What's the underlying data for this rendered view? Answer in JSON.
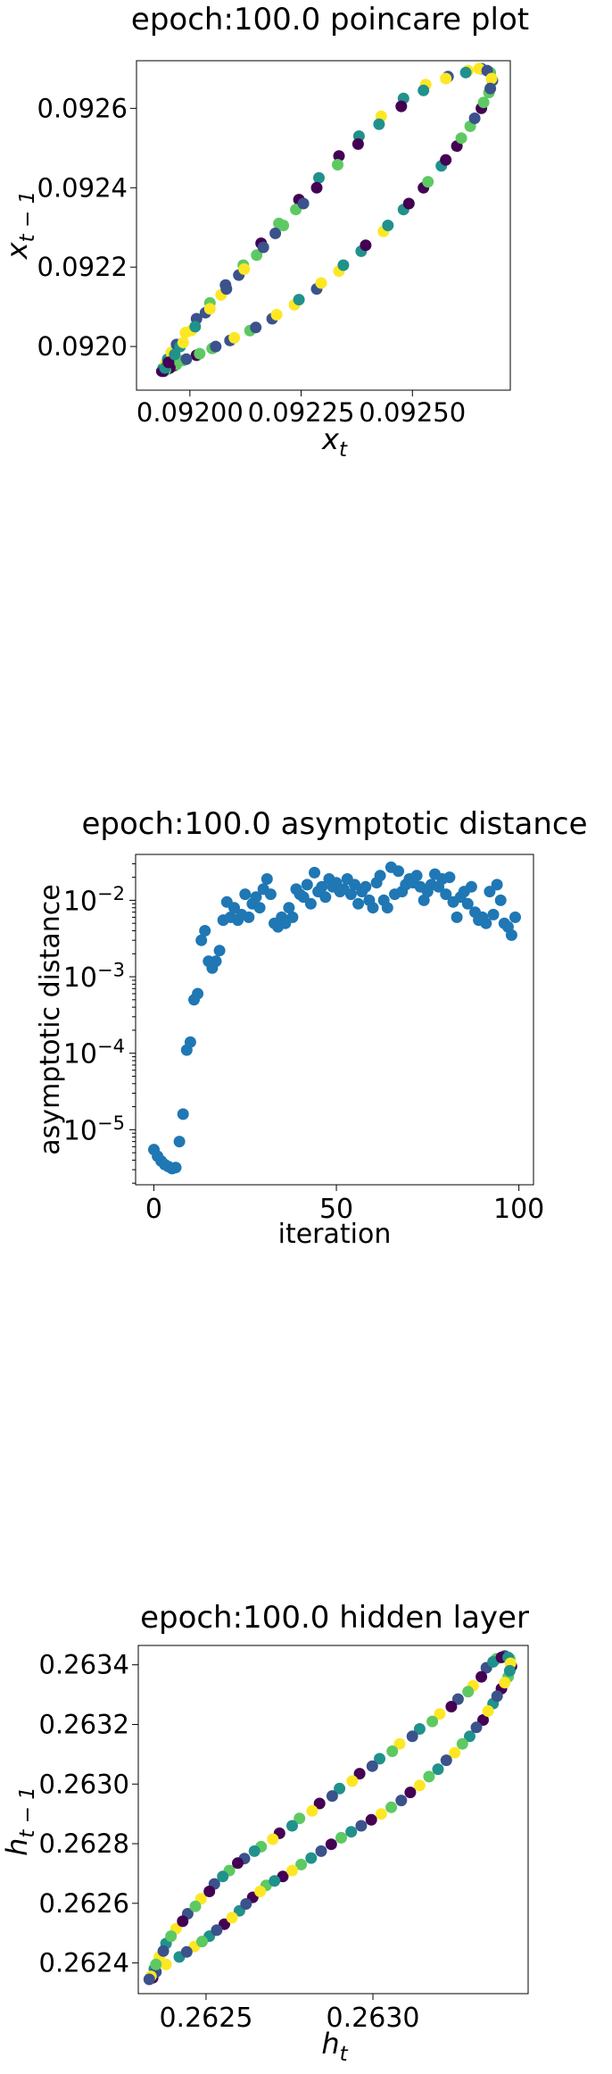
{
  "chart_data": [
    {
      "type": "scatter",
      "title": "epoch:100.0 poincare plot",
      "xlabel": "x",
      "xlabel_sub": "t",
      "ylabel": "x",
      "ylabel_sub": "t − 1",
      "xlim": [
        0.09188,
        0.09272
      ],
      "ylim": [
        0.09189,
        0.09272
      ],
      "xticks": [
        0.092,
        0.09225,
        0.0925
      ],
      "xtick_labels": [
        "0.09200",
        "0.09225",
        "0.09250"
      ],
      "yticks": [
        0.092,
        0.0922,
        0.0924,
        0.0926
      ],
      "ytick_labels": [
        "0.0920",
        "0.0922",
        "0.0924",
        "0.0926"
      ],
      "colormap": [
        "#440154",
        "#3b528b",
        "#21918c",
        "#5ec962",
        "#fde725"
      ],
      "grid": false,
      "points": [
        [
          0.091937,
          0.091938
        ],
        [
          0.09194,
          0.091945
        ],
        [
          0.091945,
          0.091955
        ],
        [
          0.09195,
          0.091968
        ],
        [
          0.091958,
          0.091985
        ],
        [
          0.09197,
          0.092005
        ],
        [
          0.09199,
          0.092035
        ],
        [
          0.092015,
          0.09207
        ],
        [
          0.092045,
          0.09211
        ],
        [
          0.09208,
          0.092155
        ],
        [
          0.09212,
          0.092205
        ],
        [
          0.09216,
          0.09226
        ],
        [
          0.0922,
          0.09231
        ],
        [
          0.092245,
          0.09237
        ],
        [
          0.09229,
          0.092425
        ],
        [
          0.092335,
          0.09248
        ],
        [
          0.09238,
          0.09253
        ],
        [
          0.09243,
          0.09258
        ],
        [
          0.09248,
          0.092625
        ],
        [
          0.09253,
          0.09266
        ],
        [
          0.09258,
          0.09268
        ],
        [
          0.092625,
          0.092695
        ],
        [
          0.092655,
          0.0927
        ],
        [
          0.092675,
          0.09269
        ],
        [
          0.09268,
          0.09267
        ],
        [
          0.092672,
          0.09264
        ],
        [
          0.092655,
          0.0926
        ],
        [
          0.09263,
          0.092555
        ],
        [
          0.0926,
          0.092505
        ],
        [
          0.092565,
          0.092455
        ],
        [
          0.092525,
          0.0924
        ],
        [
          0.09248,
          0.092345
        ],
        [
          0.092435,
          0.09229
        ],
        [
          0.092385,
          0.09224
        ],
        [
          0.092335,
          0.09219
        ],
        [
          0.092285,
          0.092145
        ],
        [
          0.092235,
          0.092105
        ],
        [
          0.092185,
          0.09207
        ],
        [
          0.092135,
          0.09204
        ],
        [
          0.09209,
          0.092015
        ],
        [
          0.09205,
          0.091995
        ],
        [
          0.092015,
          0.091978
        ],
        [
          0.091985,
          0.091965
        ],
        [
          0.091965,
          0.091952
        ],
        [
          0.09195,
          0.091943
        ],
        [
          0.091942,
          0.091938
        ],
        [
          0.091948,
          0.09195
        ],
        [
          0.09196,
          0.091972
        ],
        [
          0.091978,
          0.092
        ],
        [
          0.092003,
          0.09204
        ],
        [
          0.092035,
          0.092085
        ],
        [
          0.09207,
          0.09213
        ],
        [
          0.09211,
          0.09218
        ],
        [
          0.09215,
          0.09223
        ],
        [
          0.092192,
          0.092285
        ],
        [
          0.092238,
          0.092345
        ],
        [
          0.092285,
          0.0924
        ],
        [
          0.092332,
          0.092458
        ],
        [
          0.092378,
          0.09251
        ],
        [
          0.092425,
          0.09256
        ],
        [
          0.092475,
          0.092605
        ],
        [
          0.092525,
          0.092645
        ],
        [
          0.092575,
          0.092675
        ],
        [
          0.09262,
          0.09269
        ],
        [
          0.09265,
          0.0927
        ],
        [
          0.092668,
          0.092695
        ],
        [
          0.092678,
          0.092675
        ],
        [
          0.092675,
          0.09265
        ],
        [
          0.09266,
          0.092615
        ],
        [
          0.09264,
          0.092575
        ],
        [
          0.09261,
          0.092525
        ],
        [
          0.092575,
          0.09247
        ],
        [
          0.092535,
          0.092415
        ],
        [
          0.092492,
          0.09236
        ],
        [
          0.092445,
          0.092305
        ],
        [
          0.092395,
          0.092255
        ],
        [
          0.092345,
          0.092205
        ],
        [
          0.092295,
          0.09216
        ],
        [
          0.092245,
          0.092118
        ],
        [
          0.092195,
          0.09208
        ],
        [
          0.092148,
          0.092048
        ],
        [
          0.0921,
          0.092022
        ],
        [
          0.092058,
          0.092
        ],
        [
          0.092022,
          0.091982
        ],
        [
          0.091992,
          0.091968
        ],
        [
          0.09197,
          0.091955
        ],
        [
          0.091955,
          0.091946
        ],
        [
          0.091945,
          0.09194
        ],
        [
          0.09194,
          0.091938
        ],
        [
          0.091944,
          0.091946
        ],
        [
          0.091952,
          0.09196
        ],
        [
          0.091966,
          0.09198
        ],
        [
          0.091985,
          0.09201
        ],
        [
          0.092012,
          0.09205
        ],
        [
          0.092045,
          0.092095
        ],
        [
          0.092082,
          0.092145
        ],
        [
          0.092122,
          0.092195
        ],
        [
          0.092165,
          0.09225
        ],
        [
          0.09221,
          0.092305
        ],
        [
          0.092255,
          0.09236
        ]
      ]
    },
    {
      "type": "scatter",
      "title": "epoch:100.0 asymptotic distance",
      "xlabel": "iteration",
      "ylabel": "asymptotic distance",
      "xlim": [
        -5,
        104
      ],
      "ylim_log10": [
        -5.72,
        -1.4
      ],
      "yscale": "log",
      "xticks": [
        0,
        50,
        100
      ],
      "xtick_labels": [
        "0",
        "50",
        "100"
      ],
      "ytick_exponents": [
        -5,
        -4,
        -3,
        -2
      ],
      "ytick_base": "10",
      "ytick_exp_labels": [
        "−5",
        "−4",
        "−3",
        "−2"
      ],
      "color": "#1f77b4",
      "grid": false,
      "x": [
        0,
        1,
        2,
        3,
        4,
        5,
        6,
        7,
        8,
        9,
        10,
        11,
        12,
        13,
        14,
        15,
        16,
        17,
        18,
        19,
        20,
        21,
        22,
        23,
        24,
        25,
        26,
        27,
        28,
        29,
        30,
        31,
        32,
        33,
        34,
        35,
        36,
        37,
        38,
        39,
        40,
        41,
        42,
        43,
        44,
        45,
        46,
        47,
        48,
        49,
        50,
        51,
        52,
        53,
        54,
        55,
        56,
        57,
        58,
        59,
        60,
        61,
        62,
        63,
        64,
        65,
        66,
        67,
        68,
        69,
        70,
        71,
        72,
        73,
        74,
        75,
        76,
        77,
        78,
        79,
        80,
        81,
        82,
        83,
        84,
        85,
        86,
        87,
        88,
        89,
        90,
        91,
        92,
        93,
        94,
        95,
        96,
        97,
        98,
        99
      ],
      "y": [
        5.5e-06,
        4.5e-06,
        3.9e-06,
        3.5e-06,
        3.3e-06,
        3.1e-06,
        3.2e-06,
        7e-06,
        1.6e-05,
        0.00011,
        0.00014,
        0.0005,
        0.0006,
        0.003,
        0.004,
        0.0016,
        0.0013,
        0.0016,
        0.0022,
        0.0055,
        0.0095,
        0.006,
        0.008,
        0.0055,
        0.0065,
        0.012,
        0.006,
        0.009,
        0.011,
        0.008,
        0.014,
        0.019,
        0.012,
        0.005,
        0.0045,
        0.006,
        0.005,
        0.008,
        0.006,
        0.014,
        0.012,
        0.011,
        0.016,
        0.009,
        0.023,
        0.013,
        0.015,
        0.011,
        0.019,
        0.015,
        0.017,
        0.013,
        0.014,
        0.019,
        0.012,
        0.016,
        0.009,
        0.013,
        0.015,
        0.01,
        0.008,
        0.017,
        0.021,
        0.01,
        0.008,
        0.027,
        0.012,
        0.024,
        0.013,
        0.016,
        0.019,
        0.017,
        0.021,
        0.015,
        0.01,
        0.013,
        0.016,
        0.022,
        0.015,
        0.019,
        0.012,
        0.02,
        0.0095,
        0.006,
        0.011,
        0.013,
        0.009,
        0.015,
        0.007,
        0.0055,
        0.006,
        0.005,
        0.013,
        0.0065,
        0.016,
        0.01,
        0.005,
        0.0045,
        0.0035,
        0.006
      ]
    },
    {
      "type": "scatter",
      "title": "epoch:100.0 hidden layer",
      "xlabel": "h",
      "xlabel_sub": "t",
      "ylabel": "h",
      "ylabel_sub": "t − 1",
      "xlim": [
        0.262297,
        0.263465
      ],
      "ylim": [
        0.262297,
        0.263465
      ],
      "xticks": [
        0.2625,
        0.263
      ],
      "xtick_labels": [
        "0.2625",
        "0.2630"
      ],
      "yticks": [
        0.2624,
        0.2626,
        0.2628,
        0.263,
        0.2632,
        0.2634
      ],
      "ytick_labels": [
        "0.2624",
        "0.2626",
        "0.2628",
        "0.2630",
        "0.2632",
        "0.2634"
      ],
      "colormap": [
        "#440154",
        "#3b528b",
        "#21918c",
        "#5ec962",
        "#fde725"
      ],
      "grid": false,
      "points": [
        [
          0.26234,
          0.26235
        ],
        [
          0.262345,
          0.26238
        ],
        [
          0.26236,
          0.26242
        ],
        [
          0.26238,
          0.262465
        ],
        [
          0.26241,
          0.262515
        ],
        [
          0.262445,
          0.262565
        ],
        [
          0.262485,
          0.262615
        ],
        [
          0.262525,
          0.262665
        ],
        [
          0.26257,
          0.26271
        ],
        [
          0.262615,
          0.26275
        ],
        [
          0.262665,
          0.26279
        ],
        [
          0.26272,
          0.262835
        ],
        [
          0.26278,
          0.262885
        ],
        [
          0.26284,
          0.262935
        ],
        [
          0.2629,
          0.262985
        ],
        [
          0.26296,
          0.263035
        ],
        [
          0.26302,
          0.263085
        ],
        [
          0.26308,
          0.263135
        ],
        [
          0.26314,
          0.263185
        ],
        [
          0.2632,
          0.263235
        ],
        [
          0.263255,
          0.263285
        ],
        [
          0.2633,
          0.26333
        ],
        [
          0.26334,
          0.26339
        ],
        [
          0.26337,
          0.26342
        ],
        [
          0.263395,
          0.26343
        ],
        [
          0.26341,
          0.26342
        ],
        [
          0.263415,
          0.263395
        ],
        [
          0.263405,
          0.26336
        ],
        [
          0.263385,
          0.26332
        ],
        [
          0.26336,
          0.26327
        ],
        [
          0.26333,
          0.263215
        ],
        [
          0.26329,
          0.26316
        ],
        [
          0.263245,
          0.263105
        ],
        [
          0.263195,
          0.26305
        ],
        [
          0.26314,
          0.262995
        ],
        [
          0.263085,
          0.262945
        ],
        [
          0.263025,
          0.2629
        ],
        [
          0.262965,
          0.26286
        ],
        [
          0.262905,
          0.26282
        ],
        [
          0.262845,
          0.262775
        ],
        [
          0.262785,
          0.26273
        ],
        [
          0.26273,
          0.26269
        ],
        [
          0.26268,
          0.26266
        ],
        [
          0.26264,
          0.26262
        ],
        [
          0.2626,
          0.262575
        ],
        [
          0.262555,
          0.26253
        ],
        [
          0.26251,
          0.26249
        ],
        [
          0.262465,
          0.262455
        ],
        [
          0.26242,
          0.26242
        ],
        [
          0.26238,
          0.262395
        ],
        [
          0.26235,
          0.26237
        ],
        [
          0.262335,
          0.262355
        ],
        [
          0.26233,
          0.262345
        ],
        [
          0.26235,
          0.262395
        ],
        [
          0.262372,
          0.26244
        ],
        [
          0.262395,
          0.26249
        ],
        [
          0.26243,
          0.26254
        ],
        [
          0.262468,
          0.26259
        ],
        [
          0.26251,
          0.26264
        ],
        [
          0.26255,
          0.26269
        ],
        [
          0.262595,
          0.262735
        ],
        [
          0.262645,
          0.262775
        ],
        [
          0.2627,
          0.262815
        ],
        [
          0.262758,
          0.26286
        ],
        [
          0.262818,
          0.26291
        ],
        [
          0.262878,
          0.26296
        ],
        [
          0.262938,
          0.26301
        ],
        [
          0.262998,
          0.26306
        ],
        [
          0.263058,
          0.26311
        ],
        [
          0.263118,
          0.26316
        ],
        [
          0.263178,
          0.26321
        ],
        [
          0.263235,
          0.26326
        ],
        [
          0.263285,
          0.26331
        ],
        [
          0.263325,
          0.26336
        ],
        [
          0.26336,
          0.26341
        ],
        [
          0.263385,
          0.263425
        ],
        [
          0.263405,
          0.263425
        ],
        [
          0.263412,
          0.263405
        ],
        [
          0.26341,
          0.26338
        ],
        [
          0.263395,
          0.26334
        ],
        [
          0.263372,
          0.263295
        ],
        [
          0.263345,
          0.263245
        ],
        [
          0.26331,
          0.26319
        ],
        [
          0.263268,
          0.263135
        ],
        [
          0.26322,
          0.26308
        ],
        [
          0.263168,
          0.263025
        ],
        [
          0.263112,
          0.262972
        ],
        [
          0.263055,
          0.262922
        ],
        [
          0.262995,
          0.26288
        ],
        [
          0.262935,
          0.26284
        ],
        [
          0.262875,
          0.262798
        ],
        [
          0.262815,
          0.262752
        ],
        [
          0.262758,
          0.26271
        ],
        [
          0.262705,
          0.262675
        ],
        [
          0.262662,
          0.26264
        ],
        [
          0.26262,
          0.262598
        ],
        [
          0.262578,
          0.262552
        ],
        [
          0.262532,
          0.26251
        ],
        [
          0.262488,
          0.262472
        ],
        [
          0.262442,
          0.262437
        ]
      ]
    }
  ]
}
